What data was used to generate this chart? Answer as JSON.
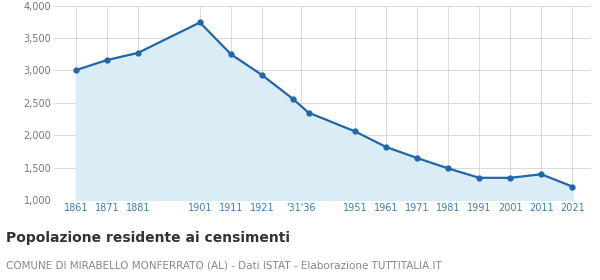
{
  "years": [
    1861,
    1871,
    1881,
    1901,
    1911,
    1921,
    1931,
    1936,
    1951,
    1961,
    1971,
    1981,
    1991,
    2001,
    2011,
    2021
  ],
  "population": [
    3004,
    3160,
    3270,
    3740,
    3250,
    2930,
    2560,
    2350,
    2060,
    1820,
    1650,
    1490,
    1345,
    1345,
    1400,
    1210
  ],
  "line_color": "#2266aa",
  "fill_color": "#daedf7",
  "marker_size": 3.5,
  "line_width": 1.6,
  "ylim": [
    1000,
    4000
  ],
  "yticks": [
    1000,
    1500,
    2000,
    2500,
    3000,
    3500,
    4000
  ],
  "ytick_labels": [
    "1,000",
    "1,500",
    "2,000",
    "2,500",
    "3,000",
    "3,500",
    "4,000"
  ],
  "grid_color": "#cccccc",
  "background_color": "#ffffff",
  "title": "Popolazione residente ai censimenti",
  "subtitle": "COMUNE DI MIRABELLO MONFERRATO (AL) - Dati ISTAT - Elaborazione TUTTITALIA.IT",
  "title_fontsize": 10,
  "subtitle_fontsize": 7.5,
  "tick_color": "#3a7dbf",
  "tick_fontsize": 7,
  "xlim": [
    1854,
    2027
  ]
}
